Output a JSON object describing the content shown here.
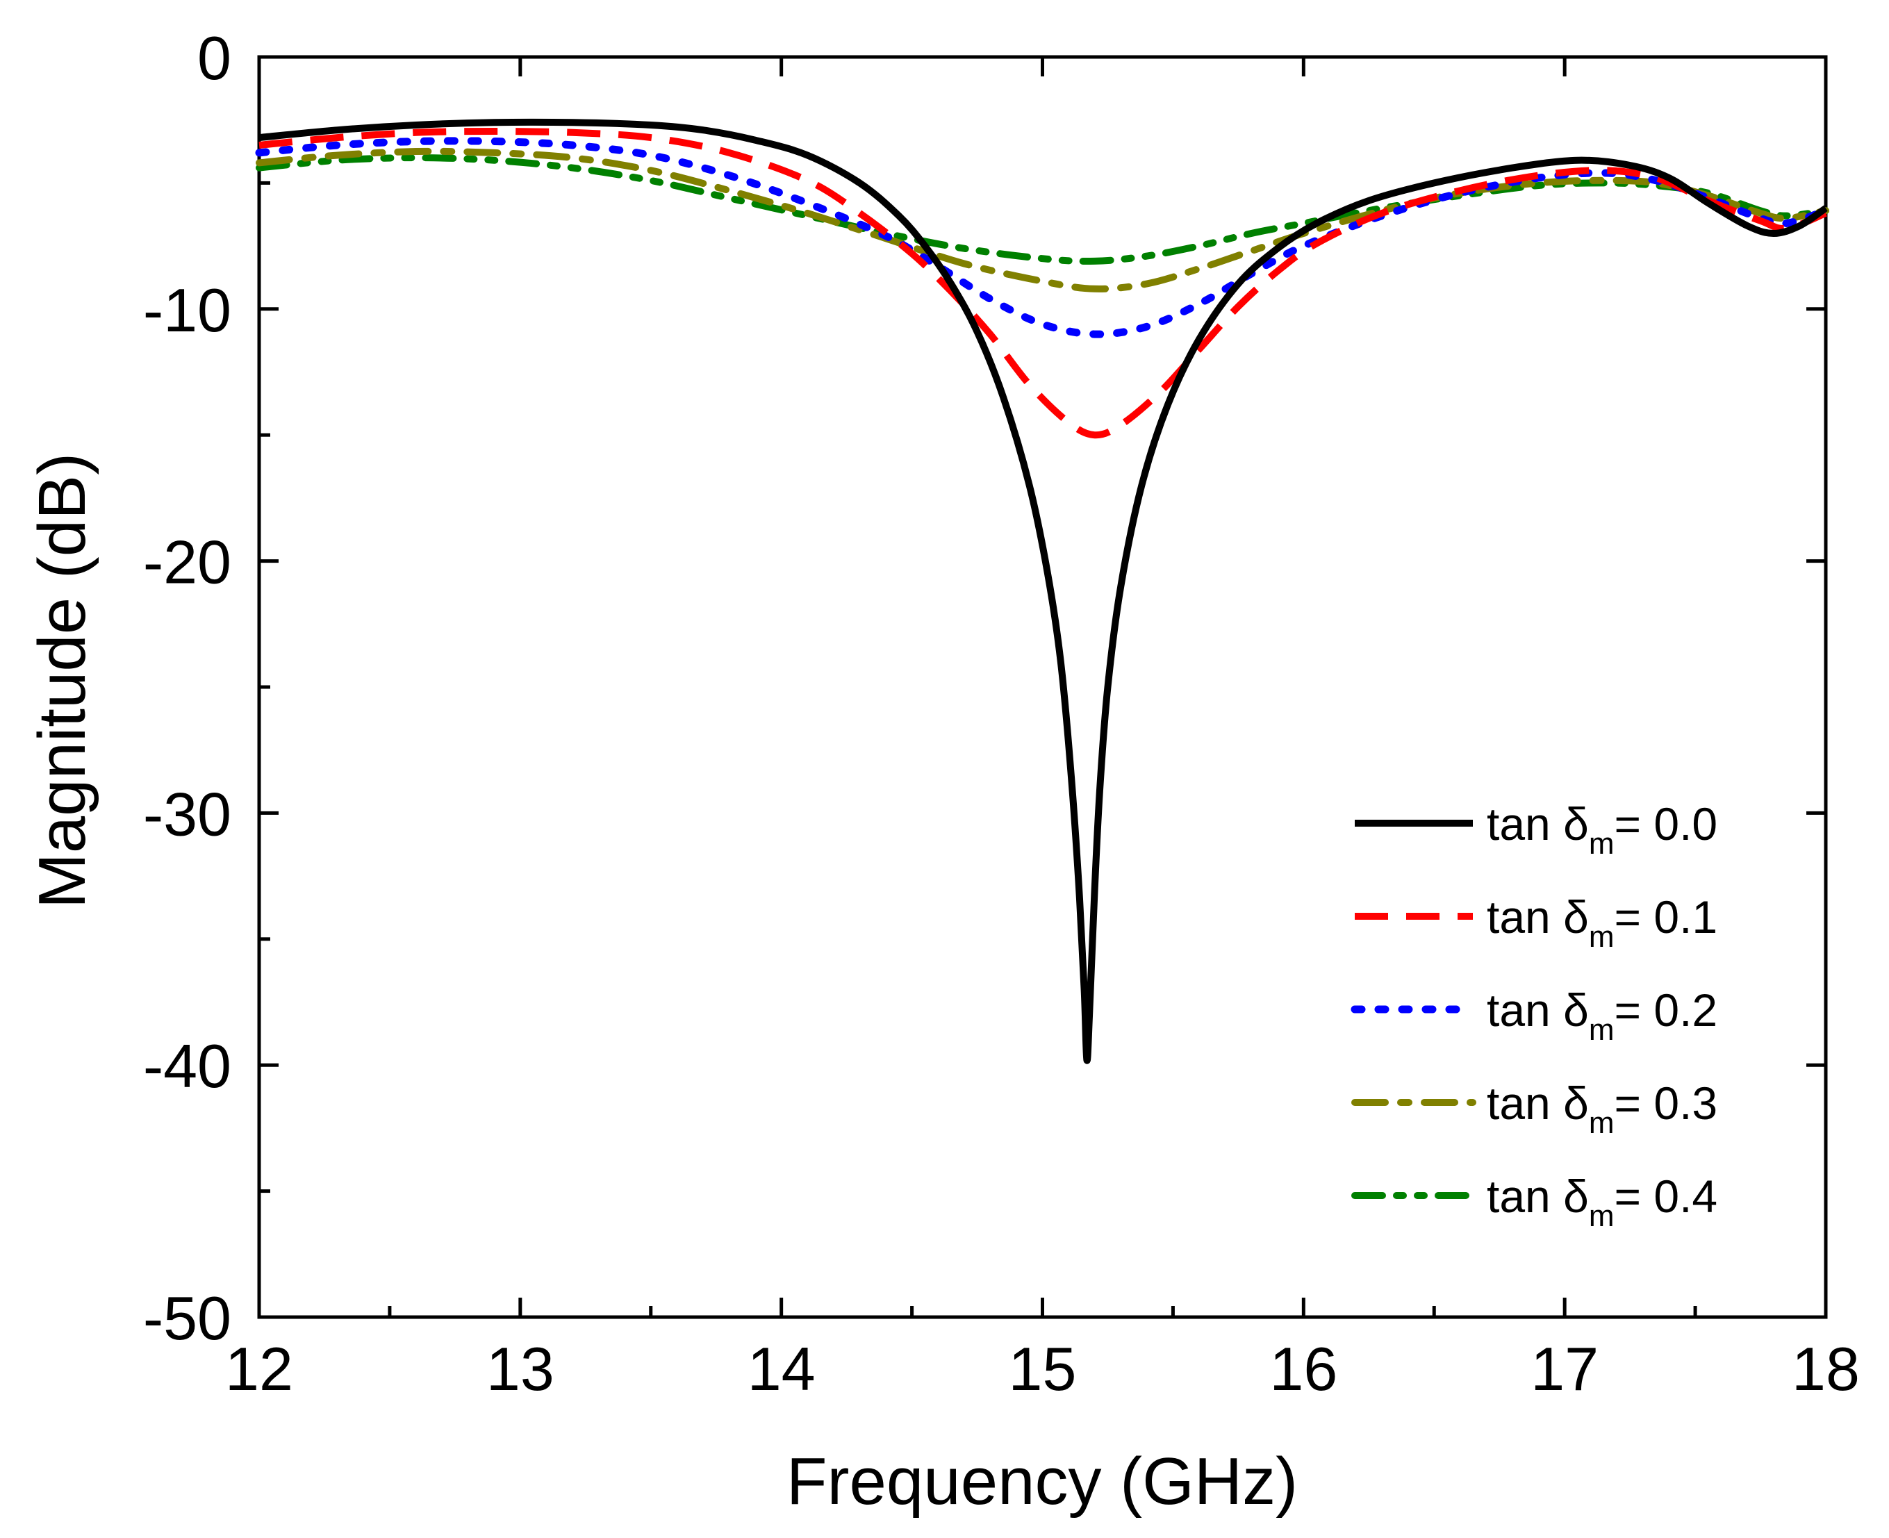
{
  "chart_data": {
    "type": "line",
    "title": "",
    "xlabel": "Frequency (GHz)",
    "ylabel": "Magnitude (dB)",
    "xlim": [
      12,
      18
    ],
    "ylim": [
      -50,
      0
    ],
    "xticks": [
      12,
      13,
      14,
      15,
      16,
      17,
      18
    ],
    "yticks": [
      0,
      -10,
      -20,
      -30,
      -40,
      -50
    ],
    "xtick_labels": [
      "12",
      "13",
      "14",
      "15",
      "16",
      "17",
      "18"
    ],
    "ytick_labels": [
      "0",
      "-10",
      "-20",
      "-30",
      "-40",
      "-50"
    ],
    "grid": false,
    "legend_position": "bottom-right",
    "series": [
      {
        "name": "tan δm = 0.0",
        "label_prefix": "tan δ",
        "label_sub": "m",
        "label_suffix": "= 0.0",
        "color": "#000000",
        "style": "solid",
        "points": [
          [
            12.0,
            -3.2
          ],
          [
            12.3,
            -2.9
          ],
          [
            12.6,
            -2.7
          ],
          [
            12.9,
            -2.6
          ],
          [
            13.2,
            -2.6
          ],
          [
            13.5,
            -2.7
          ],
          [
            13.7,
            -2.9
          ],
          [
            13.9,
            -3.3
          ],
          [
            14.1,
            -3.9
          ],
          [
            14.3,
            -5.0
          ],
          [
            14.45,
            -6.3
          ],
          [
            14.55,
            -7.5
          ],
          [
            14.65,
            -9.0
          ],
          [
            14.75,
            -10.9
          ],
          [
            14.85,
            -13.5
          ],
          [
            14.95,
            -17.0
          ],
          [
            15.02,
            -20.5
          ],
          [
            15.07,
            -24.0
          ],
          [
            15.11,
            -28.5
          ],
          [
            15.14,
            -33.0
          ],
          [
            15.16,
            -37.0
          ],
          [
            15.17,
            -39.8
          ],
          [
            15.18,
            -38.0
          ],
          [
            15.2,
            -33.0
          ],
          [
            15.22,
            -29.0
          ],
          [
            15.25,
            -25.0
          ],
          [
            15.3,
            -21.0
          ],
          [
            15.38,
            -17.0
          ],
          [
            15.48,
            -13.8
          ],
          [
            15.6,
            -11.2
          ],
          [
            15.75,
            -9.0
          ],
          [
            15.9,
            -7.6
          ],
          [
            16.05,
            -6.6
          ],
          [
            16.25,
            -5.7
          ],
          [
            16.5,
            -5.0
          ],
          [
            16.8,
            -4.4
          ],
          [
            17.05,
            -4.1
          ],
          [
            17.25,
            -4.3
          ],
          [
            17.4,
            -4.8
          ],
          [
            17.55,
            -5.8
          ],
          [
            17.7,
            -6.7
          ],
          [
            17.8,
            -7.0
          ],
          [
            17.9,
            -6.7
          ],
          [
            18.0,
            -6.0
          ]
        ]
      },
      {
        "name": "tan δm = 0.1",
        "label_prefix": "tan δ",
        "label_sub": "m",
        "label_suffix": "= 0.1",
        "color": "#ff0000",
        "style": "dash",
        "points": [
          [
            12.0,
            -3.5
          ],
          [
            12.3,
            -3.2
          ],
          [
            12.6,
            -3.0
          ],
          [
            12.9,
            -2.95
          ],
          [
            13.2,
            -3.0
          ],
          [
            13.5,
            -3.2
          ],
          [
            13.8,
            -3.8
          ],
          [
            14.1,
            -4.9
          ],
          [
            14.3,
            -6.2
          ],
          [
            14.5,
            -7.8
          ],
          [
            14.65,
            -9.3
          ],
          [
            14.8,
            -11.0
          ],
          [
            14.95,
            -13.0
          ],
          [
            15.1,
            -14.5
          ],
          [
            15.2,
            -15.0
          ],
          [
            15.3,
            -14.6
          ],
          [
            15.45,
            -13.3
          ],
          [
            15.6,
            -11.6
          ],
          [
            15.75,
            -9.9
          ],
          [
            15.9,
            -8.5
          ],
          [
            16.05,
            -7.4
          ],
          [
            16.3,
            -6.2
          ],
          [
            16.6,
            -5.3
          ],
          [
            16.9,
            -4.7
          ],
          [
            17.15,
            -4.5
          ],
          [
            17.35,
            -4.8
          ],
          [
            17.55,
            -5.7
          ],
          [
            17.75,
            -6.5
          ],
          [
            17.85,
            -6.8
          ],
          [
            18.0,
            -6.2
          ]
        ]
      },
      {
        "name": "tan δm = 0.2",
        "label_prefix": "tan δ",
        "label_sub": "m",
        "label_suffix": "= 0.2",
        "color": "#0000ff",
        "style": "dot",
        "points": [
          [
            12.0,
            -3.8
          ],
          [
            12.3,
            -3.5
          ],
          [
            12.6,
            -3.35
          ],
          [
            12.9,
            -3.35
          ],
          [
            13.2,
            -3.5
          ],
          [
            13.5,
            -3.9
          ],
          [
            13.8,
            -4.7
          ],
          [
            14.1,
            -5.8
          ],
          [
            14.4,
            -7.1
          ],
          [
            14.6,
            -8.3
          ],
          [
            14.8,
            -9.6
          ],
          [
            15.0,
            -10.6
          ],
          [
            15.2,
            -11.0
          ],
          [
            15.4,
            -10.7
          ],
          [
            15.6,
            -9.8
          ],
          [
            15.8,
            -8.6
          ],
          [
            16.0,
            -7.5
          ],
          [
            16.3,
            -6.3
          ],
          [
            16.6,
            -5.4
          ],
          [
            16.9,
            -4.8
          ],
          [
            17.15,
            -4.6
          ],
          [
            17.35,
            -4.9
          ],
          [
            17.55,
            -5.6
          ],
          [
            17.75,
            -6.4
          ],
          [
            17.85,
            -6.6
          ],
          [
            18.0,
            -6.1
          ]
        ]
      },
      {
        "name": "tan δm = 0.3",
        "label_prefix": "tan δ",
        "label_sub": "m",
        "label_suffix": "= 0.3",
        "color": "#808000",
        "style": "dashdot",
        "points": [
          [
            12.0,
            -4.2
          ],
          [
            12.3,
            -3.9
          ],
          [
            12.6,
            -3.75
          ],
          [
            12.9,
            -3.8
          ],
          [
            13.2,
            -4.0
          ],
          [
            13.5,
            -4.5
          ],
          [
            13.8,
            -5.3
          ],
          [
            14.1,
            -6.2
          ],
          [
            14.4,
            -7.2
          ],
          [
            14.7,
            -8.2
          ],
          [
            15.0,
            -8.9
          ],
          [
            15.2,
            -9.2
          ],
          [
            15.4,
            -9.0
          ],
          [
            15.6,
            -8.4
          ],
          [
            15.8,
            -7.7
          ],
          [
            16.0,
            -7.0
          ],
          [
            16.3,
            -6.1
          ],
          [
            16.6,
            -5.4
          ],
          [
            16.9,
            -5.0
          ],
          [
            17.15,
            -4.9
          ],
          [
            17.35,
            -5.0
          ],
          [
            17.55,
            -5.5
          ],
          [
            17.75,
            -6.2
          ],
          [
            17.85,
            -6.4
          ],
          [
            18.0,
            -6.1
          ]
        ]
      },
      {
        "name": "tan δm = 0.4",
        "label_prefix": "tan δ",
        "label_sub": "m",
        "label_suffix": "= 0.4",
        "color": "#008000",
        "style": "dashdotdot",
        "points": [
          [
            12.0,
            -4.4
          ],
          [
            12.3,
            -4.1
          ],
          [
            12.6,
            -4.0
          ],
          [
            12.9,
            -4.1
          ],
          [
            13.2,
            -4.4
          ],
          [
            13.5,
            -4.9
          ],
          [
            13.8,
            -5.6
          ],
          [
            14.1,
            -6.3
          ],
          [
            14.4,
            -7.0
          ],
          [
            14.7,
            -7.6
          ],
          [
            15.0,
            -8.0
          ],
          [
            15.2,
            -8.1
          ],
          [
            15.4,
            -7.9
          ],
          [
            15.6,
            -7.5
          ],
          [
            15.8,
            -7.0
          ],
          [
            16.0,
            -6.6
          ],
          [
            16.3,
            -6.0
          ],
          [
            16.6,
            -5.5
          ],
          [
            16.9,
            -5.1
          ],
          [
            17.15,
            -5.0
          ],
          [
            17.35,
            -5.1
          ],
          [
            17.55,
            -5.4
          ],
          [
            17.75,
            -6.1
          ],
          [
            17.85,
            -6.3
          ],
          [
            18.0,
            -6.1
          ]
        ]
      }
    ]
  }
}
